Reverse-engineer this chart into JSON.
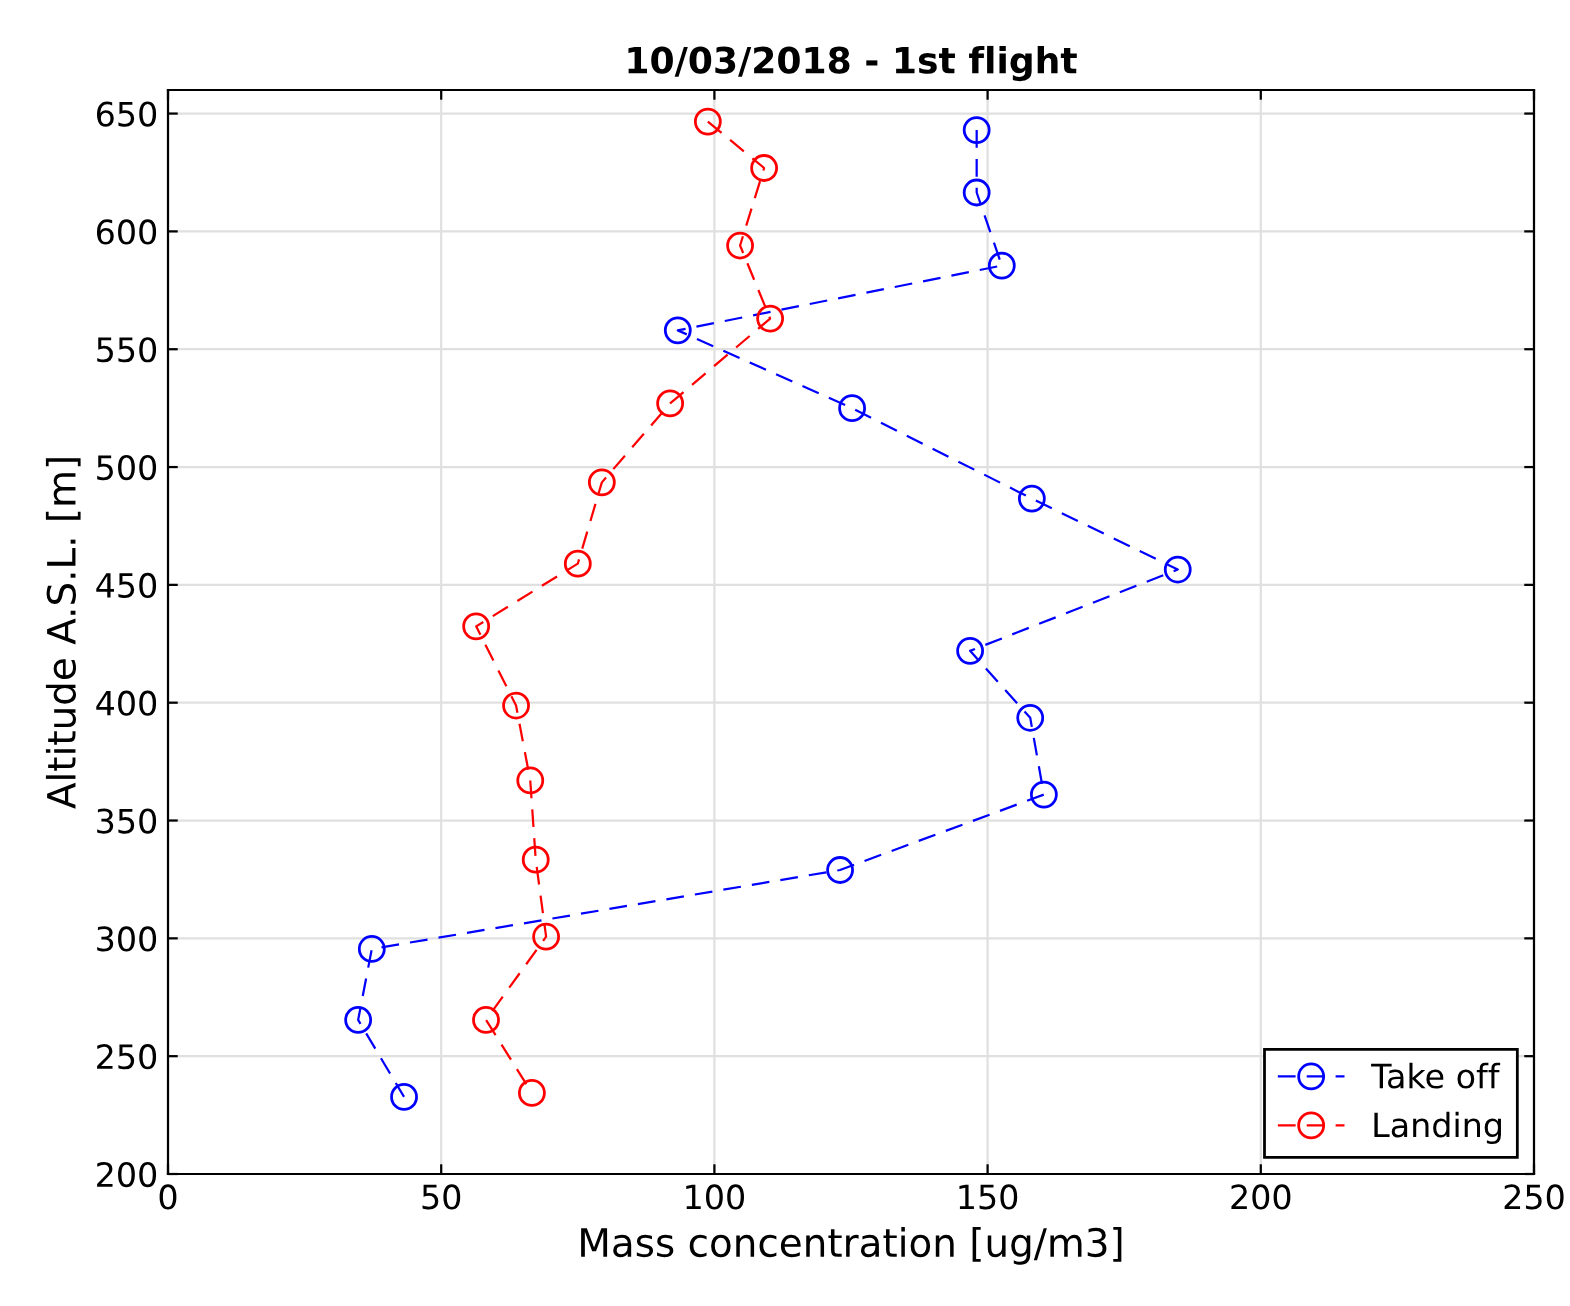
{
  "chart_data": {
    "type": "line",
    "title": "10/03/2018 - 1st flight",
    "xlabel": "Mass concentration [ug/m3]",
    "ylabel": "Altitude A.S.L. [m]",
    "xlim": [
      0,
      250
    ],
    "xticks": [
      0,
      50,
      100,
      150,
      200,
      250
    ],
    "ylim": [
      200,
      660
    ],
    "yticks": [
      200,
      250,
      300,
      350,
      400,
      450,
      500,
      550,
      600,
      650
    ],
    "grid": true,
    "legend": "bottom right",
    "marker": "circle",
    "line_style": "dashed",
    "series": [
      {
        "name": "Take off",
        "color": "#0000ff",
        "x": [
          148,
          148,
          152.6,
          93.3,
          125.2,
          158.1,
          184.8,
          146.8,
          157.8,
          160.3,
          123,
          37.3,
          34.8,
          43.2
        ],
        "values": [
          643,
          616.5,
          585.5,
          558,
          525,
          486.6,
          456.5,
          422,
          393.6,
          361,
          329,
          295.5,
          265.4,
          232.7
        ]
      },
      {
        "name": "Landing",
        "color": "#ff0000",
        "x": [
          98.8,
          109.1,
          104.7,
          110.2,
          91.9,
          79.4,
          75,
          56.4,
          63.7,
          66.3,
          67.3,
          69.2,
          58.2,
          66.6
        ],
        "values": [
          646.6,
          626.9,
          594,
          563,
          527,
          493.5,
          459,
          432.4,
          398.8,
          367,
          333.4,
          300.7,
          265.4,
          234.4
        ]
      }
    ]
  }
}
